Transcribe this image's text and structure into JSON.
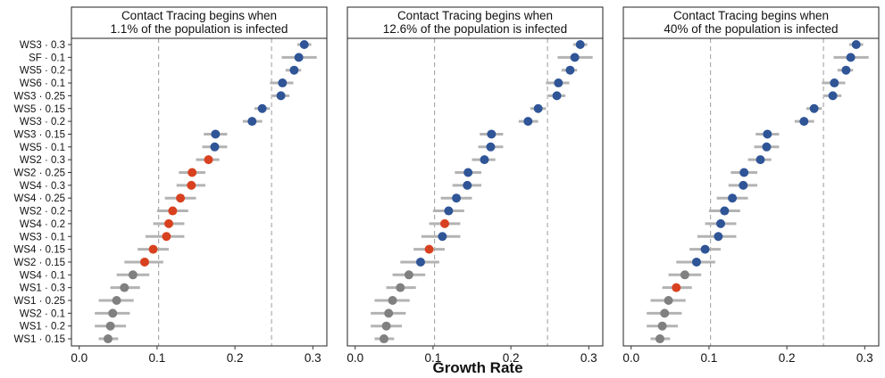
{
  "chart_data": {
    "type": "scatter",
    "xlabel": "Growth Rate",
    "xlim": [
      -0.01,
      0.318
    ],
    "xticks": [
      0.0,
      0.1,
      0.2,
      0.3
    ],
    "xtick_labels": [
      "0.0",
      "0.1",
      "0.2",
      "0.3"
    ],
    "reference_lines": [
      0.102,
      0.247
    ],
    "colors": {
      "blue": "#2f5597",
      "red": "#d8411f",
      "gray": "#808080",
      "bar": "#b3b3b3"
    },
    "categories": [
      "WS3 · 0.3",
      "SF · 0.1",
      "WS5 · 0.2",
      "WS6 · 0.1",
      "WS3 · 0.25",
      "WS5 · 0.15",
      "WS3 · 0.2",
      "WS3 · 0.15",
      "WS5 · 0.1",
      "WS2 · 0.3",
      "WS2 · 0.25",
      "WS4 · 0.3",
      "WS4 · 0.25",
      "WS2 · 0.2",
      "WS4 · 0.2",
      "WS3 · 0.1",
      "WS4 · 0.15",
      "WS2 · 0.15",
      "WS4 · 0.1",
      "WS1 · 0.3",
      "WS1 · 0.25",
      "WS2 · 0.1",
      "WS1 · 0.2",
      "WS1 · 0.15"
    ],
    "estimates": [
      0.289,
      0.282,
      0.276,
      0.261,
      0.259,
      0.235,
      0.222,
      0.175,
      0.174,
      0.166,
      0.145,
      0.144,
      0.13,
      0.12,
      0.115,
      0.112,
      0.095,
      0.084,
      0.069,
      0.058,
      0.048,
      0.043,
      0.04,
      0.037
    ],
    "ci_low": [
      0.28,
      0.26,
      0.265,
      0.245,
      0.248,
      0.225,
      0.21,
      0.16,
      0.158,
      0.15,
      0.128,
      0.125,
      0.11,
      0.1,
      0.095,
      0.085,
      0.075,
      0.058,
      0.048,
      0.04,
      0.025,
      0.02,
      0.02,
      0.025
    ],
    "ci_high": [
      0.298,
      0.305,
      0.285,
      0.275,
      0.27,
      0.245,
      0.235,
      0.19,
      0.19,
      0.18,
      0.162,
      0.162,
      0.15,
      0.14,
      0.135,
      0.135,
      0.115,
      0.108,
      0.09,
      0.078,
      0.07,
      0.065,
      0.06,
      0.05
    ],
    "panels": [
      {
        "title_line1": "Contact Tracing begins when",
        "title_line2": "1.1% of the population is infected",
        "point_colors": [
          "blue",
          "blue",
          "blue",
          "blue",
          "blue",
          "blue",
          "blue",
          "blue",
          "blue",
          "red",
          "red",
          "red",
          "red",
          "red",
          "red",
          "red",
          "red",
          "red",
          "gray",
          "gray",
          "gray",
          "gray",
          "gray",
          "gray"
        ]
      },
      {
        "title_line1": "Contact Tracing begins when",
        "title_line2": "12.6% of the population is infected",
        "point_colors": [
          "blue",
          "blue",
          "blue",
          "blue",
          "blue",
          "blue",
          "blue",
          "blue",
          "blue",
          "blue",
          "blue",
          "blue",
          "blue",
          "blue",
          "red",
          "blue",
          "red",
          "blue",
          "gray",
          "gray",
          "gray",
          "gray",
          "gray",
          "gray"
        ]
      },
      {
        "title_line1": "Contact Tracing begins when",
        "title_line2": "40% of the population is infected",
        "point_colors": [
          "blue",
          "blue",
          "blue",
          "blue",
          "blue",
          "blue",
          "blue",
          "blue",
          "blue",
          "blue",
          "blue",
          "blue",
          "blue",
          "blue",
          "blue",
          "blue",
          "blue",
          "blue",
          "gray",
          "red",
          "gray",
          "gray",
          "gray",
          "gray"
        ]
      }
    ]
  }
}
